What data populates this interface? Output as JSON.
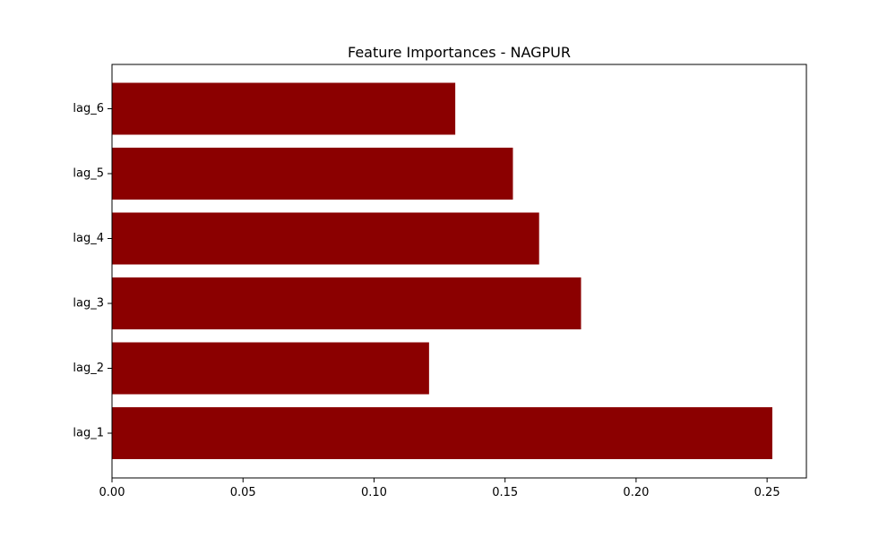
{
  "colors": {
    "bar": "#8b0000",
    "axis": "#000000",
    "background": "#ffffff"
  },
  "chart_data": {
    "type": "bar",
    "orientation": "horizontal",
    "title": "Feature Importances - NAGPUR",
    "xlabel": "",
    "ylabel": "",
    "categories": [
      "lag_1",
      "lag_2",
      "lag_3",
      "lag_4",
      "lag_5",
      "lag_6"
    ],
    "values": [
      0.252,
      0.121,
      0.179,
      0.163,
      0.153,
      0.131
    ],
    "xlim": [
      0,
      0.265
    ],
    "xticks": [
      0.0,
      0.05,
      0.1,
      0.15,
      0.2,
      0.25
    ],
    "xtick_labels": [
      "0.00",
      "0.05",
      "0.10",
      "0.15",
      "0.20",
      "0.25"
    ],
    "grid": false,
    "legend": "none"
  }
}
